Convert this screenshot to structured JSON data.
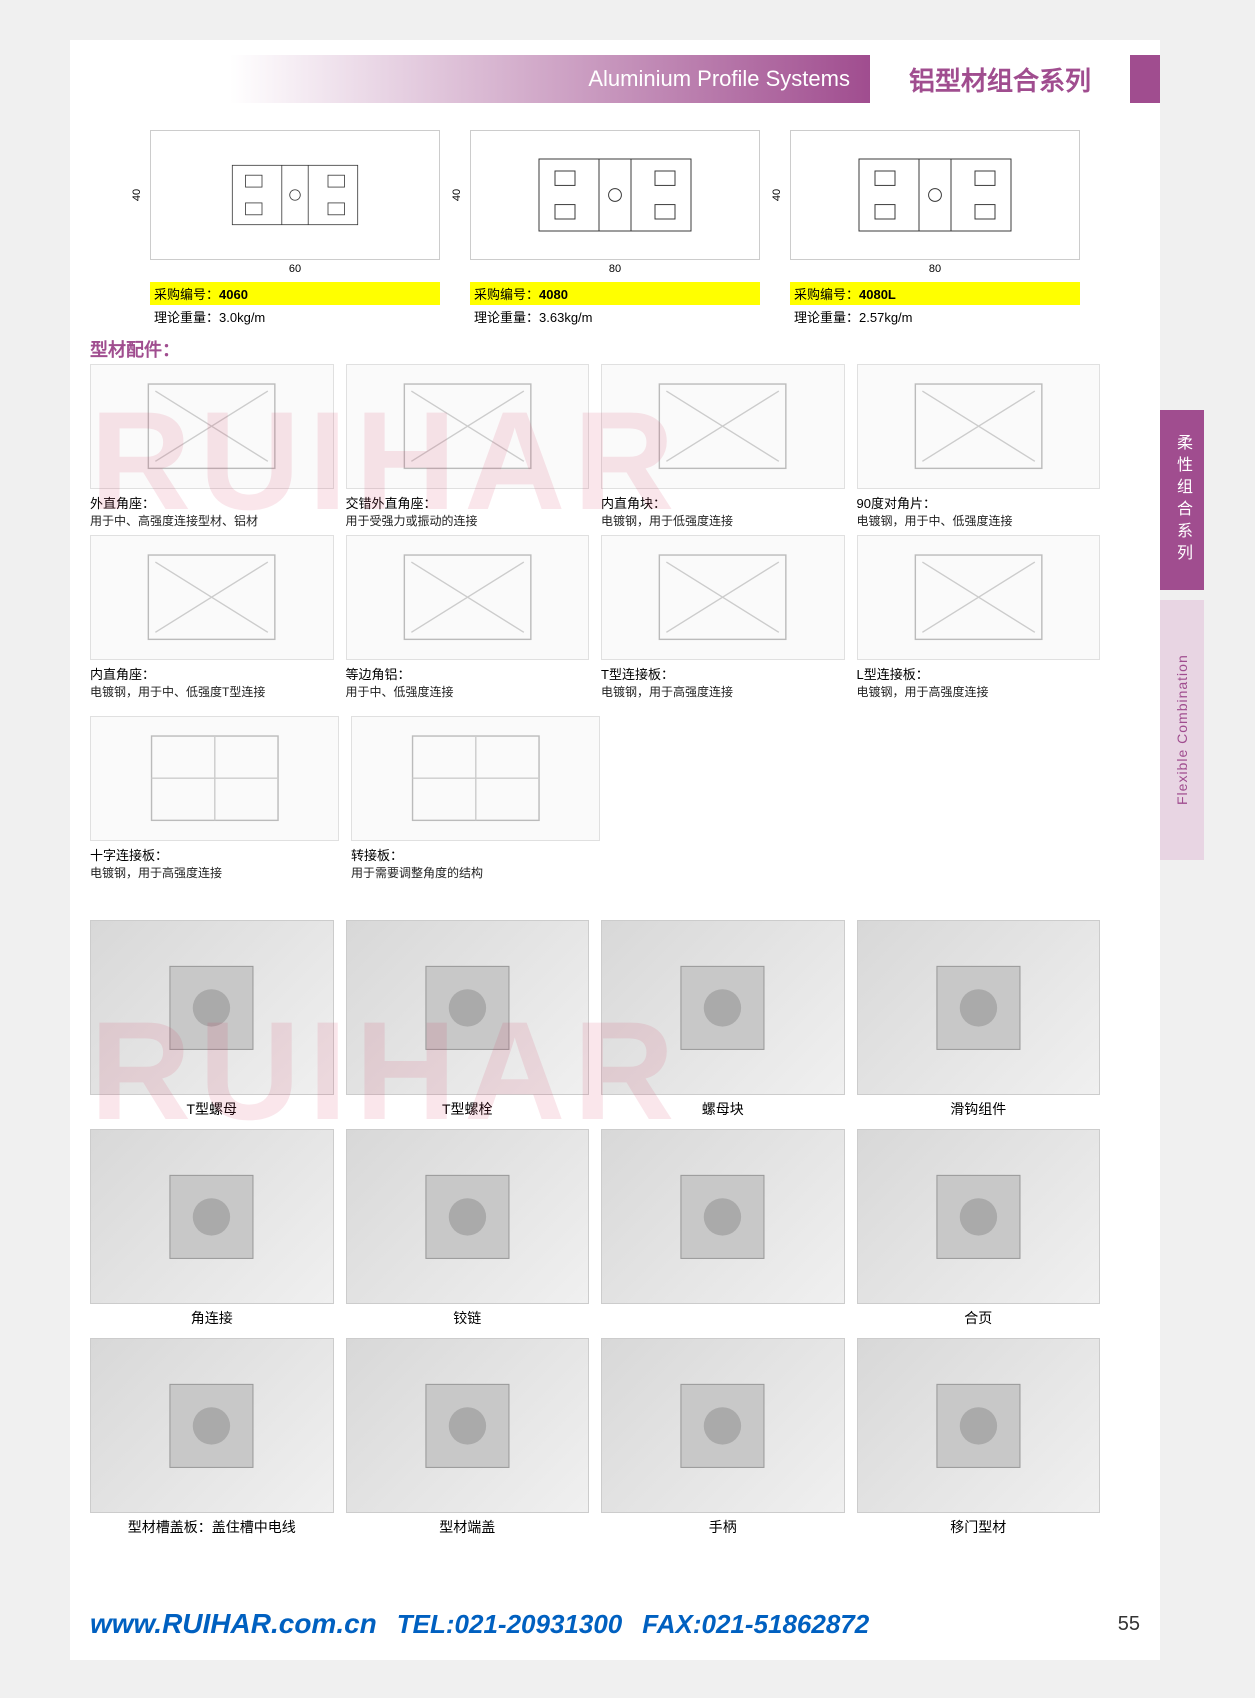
{
  "header": {
    "title_en": "Aluminium Profile Systems",
    "title_cn": "铝型材组合系列",
    "accent_color": "#a04d8f"
  },
  "side_tab": {
    "cn": "柔性组合系列",
    "en": "Flexible Combination",
    "bg_cn": "#a04d8f",
    "bg_en": "#e8d5e3"
  },
  "profiles": [
    {
      "code_label": "采购编号：",
      "code": "4060",
      "wt_label": "理论重量：",
      "wt": "3.0kg/m",
      "dim_h": "40",
      "dim_w": "60"
    },
    {
      "code_label": "采购编号：",
      "code": "4080",
      "wt_label": "理论重量：",
      "wt": "3.63kg/m",
      "dim_h": "40",
      "dim_w": "80"
    },
    {
      "code_label": "采购编号：",
      "code": "4080L",
      "wt_label": "理论重量：",
      "wt": "2.57kg/m",
      "dim_h": "40",
      "dim_w": "80"
    }
  ],
  "section_label": "型材配件：",
  "accessories_row12": [
    {
      "title": "外直角座：",
      "desc": "用于中、高强度连接型材、铝材"
    },
    {
      "title": "交错外直角座：",
      "desc": "用于受强力或振动的连接"
    },
    {
      "title": "内直角块：",
      "desc": "电镀钢，用于低强度连接"
    },
    {
      "title": "90度对角片：",
      "desc": "电镀钢，用于中、低强度连接"
    },
    {
      "title": "内直角座：",
      "desc": "电镀钢，用于中、低强度T型连接"
    },
    {
      "title": "等边角铝：",
      "desc": "用于中、低强度连接"
    },
    {
      "title": "T型连接板：",
      "desc": "电镀钢，用于高强度连接"
    },
    {
      "title": "L型连接板：",
      "desc": "电镀钢，用于高强度连接"
    }
  ],
  "accessories_row3": [
    {
      "title": "十字连接板：",
      "desc": "电镀钢，用于高强度连接"
    },
    {
      "title": "转接板：",
      "desc": "用于需要调整角度的结构"
    }
  ],
  "photo_items": [
    {
      "caption": "T型螺母"
    },
    {
      "caption": "T型螺栓"
    },
    {
      "caption": "螺母块"
    },
    {
      "caption": "滑钩组件"
    },
    {
      "caption": "角连接"
    },
    {
      "caption": "铰链"
    },
    {
      "caption": ""
    },
    {
      "caption": "合页"
    },
    {
      "caption": "型材槽盖板：盖住槽中电线"
    },
    {
      "caption": "型材端盖"
    },
    {
      "caption": "手柄"
    },
    {
      "caption": "移门型材"
    }
  ],
  "watermark": "RUIHAR",
  "footer": {
    "url": "www.RUIHAR.com.cn",
    "tel_label": "TEL:",
    "tel": "021-20931300",
    "fax_label": "FAX:",
    "fax": "021-51862872",
    "page": "55",
    "text_color": "#0060c0"
  },
  "colors": {
    "highlight": "#ffff00",
    "background": "#ffffff"
  }
}
